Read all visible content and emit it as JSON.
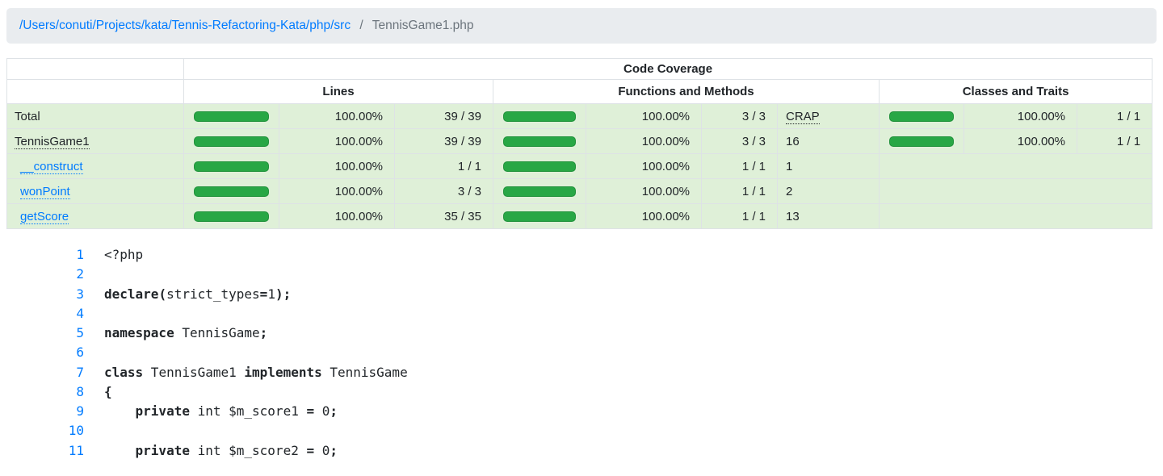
{
  "breadcrumb": {
    "path_link": "/Users/conuti/Projects/kata/Tennis-Refactoring-Kata/php/src",
    "separator": "/",
    "current": "TennisGame1.php"
  },
  "coverage_table": {
    "title": "Code Coverage",
    "group_labels": [
      "Lines",
      "Functions and Methods",
      "Classes and Traits"
    ],
    "rows": [
      {
        "name": "Total",
        "lines_pct": "100.00%",
        "lines_cnt": "39 / 39",
        "fn_pct": "100.00%",
        "fn_cnt": "3 / 3",
        "crap": "CRAP",
        "cls_pct": "100.00%",
        "cls_cnt": "1 / 1"
      },
      {
        "name": "TennisGame1",
        "lines_pct": "100.00%",
        "lines_cnt": "39 / 39",
        "fn_pct": "100.00%",
        "fn_cnt": "3 / 3",
        "crap": "16",
        "cls_pct": "100.00%",
        "cls_cnt": "1 / 1"
      },
      {
        "name": "__construct",
        "lines_pct": "100.00%",
        "lines_cnt": "1 / 1",
        "fn_pct": "100.00%",
        "fn_cnt": "1 / 1",
        "crap": "1"
      },
      {
        "name": "wonPoint",
        "lines_pct": "100.00%",
        "lines_cnt": "3 / 3",
        "fn_pct": "100.00%",
        "fn_cnt": "1 / 1",
        "crap": "2"
      },
      {
        "name": "getScore",
        "lines_pct": "100.00%",
        "lines_cnt": "35 / 35",
        "fn_pct": "100.00%",
        "fn_cnt": "1 / 1",
        "crap": "13"
      }
    ]
  },
  "code": {
    "lines": [
      {
        "num": "1",
        "tokens": [
          {
            "t": "<?php",
            "b": 0
          }
        ]
      },
      {
        "num": "2",
        "tokens": []
      },
      {
        "num": "3",
        "tokens": [
          {
            "t": "declare",
            "b": 1
          },
          {
            "t": "(",
            "b": 1
          },
          {
            "t": "strict_types",
            "b": 0
          },
          {
            "t": "=",
            "b": 1
          },
          {
            "t": "1",
            "b": 0
          },
          {
            "t": ")",
            "b": 1
          },
          {
            "t": ";",
            "b": 1
          }
        ]
      },
      {
        "num": "4",
        "tokens": []
      },
      {
        "num": "5",
        "tokens": [
          {
            "t": "namespace",
            "b": 1
          },
          {
            "t": " TennisGame",
            "b": 0
          },
          {
            "t": ";",
            "b": 1
          }
        ]
      },
      {
        "num": "6",
        "tokens": []
      },
      {
        "num": "7",
        "tokens": [
          {
            "t": "class",
            "b": 1
          },
          {
            "t": " TennisGame1 ",
            "b": 0
          },
          {
            "t": "implements",
            "b": 1
          },
          {
            "t": " TennisGame",
            "b": 0
          }
        ]
      },
      {
        "num": "8",
        "tokens": [
          {
            "t": "{",
            "b": 1
          }
        ]
      },
      {
        "num": "9",
        "tokens": [
          {
            "t": "    ",
            "b": 0
          },
          {
            "t": "private",
            "b": 1
          },
          {
            "t": " int $m_score1 ",
            "b": 0
          },
          {
            "t": "=",
            "b": 1
          },
          {
            "t": " 0",
            "b": 0
          },
          {
            "t": ";",
            "b": 1
          }
        ]
      },
      {
        "num": "10",
        "tokens": []
      },
      {
        "num": "11",
        "tokens": [
          {
            "t": "    ",
            "b": 0
          },
          {
            "t": "private",
            "b": 1
          },
          {
            "t": " int $m_score2 ",
            "b": 0
          },
          {
            "t": "=",
            "b": 1
          },
          {
            "t": " 0",
            "b": 0
          },
          {
            "t": ";",
            "b": 1
          }
        ]
      }
    ]
  },
  "colors": {
    "bar_green": "#28a745",
    "row_green": "#dff0d8",
    "link_blue": "#007bff",
    "breadcrumb_bg": "#e9ecef",
    "muted_text": "#6c757d",
    "table_border": "#dee2e6"
  }
}
